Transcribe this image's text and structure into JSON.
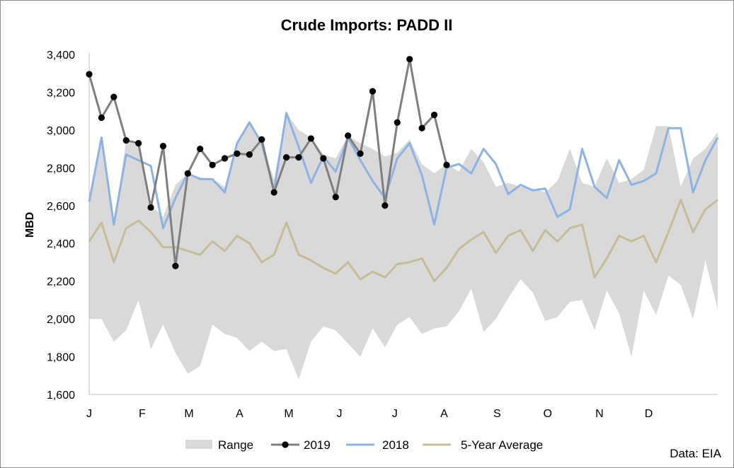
{
  "chart_data": {
    "type": "line",
    "title": "Crude Imports: PADD II",
    "xlabel": "",
    "ylabel": "MBD",
    "ylim": [
      1600,
      3400
    ],
    "yticks": [
      1600,
      1800,
      2000,
      2200,
      2400,
      2600,
      2800,
      3000,
      3200,
      3400
    ],
    "ytick_labels": [
      "1,600",
      "1,800",
      "2,000",
      "2,200",
      "2,400",
      "2,600",
      "2,800",
      "3,000",
      "3,200",
      "3,400"
    ],
    "week_count": 52,
    "month_ticks": [
      {
        "label": "J",
        "week": 1
      },
      {
        "label": "F",
        "week": 5.3
      },
      {
        "label": "M",
        "week": 9.1
      },
      {
        "label": "A",
        "week": 13.2
      },
      {
        "label": "M",
        "week": 17.2
      },
      {
        "label": "J",
        "week": 21.3
      },
      {
        "label": "J",
        "week": 25.8
      },
      {
        "label": "A",
        "week": 29.8
      },
      {
        "label": "S",
        "week": 34.1
      },
      {
        "label": "O",
        "week": 38.2
      },
      {
        "label": "N",
        "week": 42.4
      },
      {
        "label": "D",
        "week": 46.4
      }
    ],
    "series": [
      {
        "name": "Range",
        "kind": "band",
        "color": "#d9d9d9",
        "upper": [
          2640,
          2960,
          2500,
          2940,
          2920,
          2600,
          2540,
          2710,
          2770,
          2750,
          2740,
          2700,
          2940,
          3050,
          2930,
          2740,
          3090,
          3000,
          2960,
          2870,
          2850,
          2970,
          2930,
          2900,
          2860,
          2880,
          2950,
          2820,
          2770,
          2820,
          2780,
          2900,
          2830,
          2700,
          2720,
          2700,
          2690,
          2670,
          2730,
          2900,
          2720,
          2700,
          2850,
          2720,
          2740,
          2790,
          3020,
          3020,
          2700,
          2850,
          2900,
          2990
        ],
        "lower": [
          2000,
          2000,
          1880,
          1940,
          2100,
          1840,
          1970,
          1820,
          1710,
          1750,
          1970,
          1920,
          1900,
          1830,
          1880,
          1830,
          1840,
          1680,
          1880,
          1960,
          1940,
          1870,
          1800,
          1950,
          1850,
          1970,
          2010,
          1920,
          1950,
          1960,
          2040,
          2160,
          1930,
          2000,
          2110,
          2210,
          2140,
          1990,
          2010,
          2090,
          2100,
          1940,
          2150,
          2030,
          1800,
          2150,
          2020,
          2230,
          2180,
          2000,
          2310,
          2050
        ]
      },
      {
        "name": "2019",
        "kind": "line",
        "color": "#7f7f7f",
        "marker_color": "#000000",
        "values": [
          3295,
          3065,
          3175,
          2945,
          2930,
          2590,
          2915,
          2280,
          2770,
          2900,
          2815,
          2850,
          2875,
          2870,
          2950,
          2670,
          2855,
          2855,
          2955,
          2850,
          2645,
          2970,
          2875,
          3205,
          2600,
          3040,
          3375,
          3010,
          3080,
          2815
        ]
      },
      {
        "name": "2018",
        "kind": "line",
        "color": "#8db3e2",
        "values": [
          2620,
          2960,
          2500,
          2870,
          2840,
          2810,
          2480,
          2640,
          2770,
          2740,
          2740,
          2670,
          2930,
          3040,
          2930,
          2680,
          3090,
          2910,
          2720,
          2860,
          2780,
          2960,
          2840,
          2730,
          2640,
          2850,
          2930,
          2760,
          2500,
          2800,
          2820,
          2770,
          2900,
          2820,
          2660,
          2710,
          2680,
          2690,
          2540,
          2580,
          2900,
          2700,
          2640,
          2840,
          2710,
          2730,
          2770,
          3010,
          3010,
          2670,
          2840,
          2960
        ]
      },
      {
        "name": "5-Year Average",
        "kind": "line",
        "color": "#c4bd97",
        "values": [
          2410,
          2510,
          2300,
          2480,
          2520,
          2460,
          2380,
          2380,
          2360,
          2340,
          2410,
          2360,
          2440,
          2400,
          2300,
          2340,
          2510,
          2340,
          2310,
          2270,
          2240,
          2300,
          2210,
          2250,
          2220,
          2290,
          2300,
          2320,
          2200,
          2270,
          2370,
          2420,
          2460,
          2350,
          2440,
          2470,
          2360,
          2470,
          2410,
          2480,
          2500,
          2220,
          2320,
          2440,
          2410,
          2440,
          2300,
          2460,
          2630,
          2460,
          2580,
          2630
        ]
      }
    ],
    "legend": [
      {
        "label": "Range",
        "color": "#d9d9d9",
        "kind": "band"
      },
      {
        "label": "2019",
        "color": "#7f7f7f",
        "kind": "line-marker"
      },
      {
        "label": "2018",
        "color": "#8db3e2",
        "kind": "line"
      },
      {
        "label": "5-Year Average",
        "color": "#c4bd97",
        "kind": "line"
      }
    ],
    "legend_position": "bottom",
    "source": "Data: EIA"
  }
}
